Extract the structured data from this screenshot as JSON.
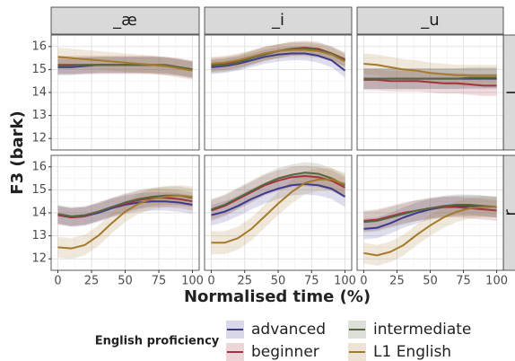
{
  "chart_data": {
    "type": "line",
    "x_label": "Normalised time (%)",
    "y_label": "F3 (bark)",
    "legend_title": "English proficiency",
    "xlim": [
      -5,
      105
    ],
    "ylim": [
      11.5,
      16.5
    ],
    "xticks": [
      0,
      25,
      50,
      75,
      100
    ],
    "yticks": [
      12,
      13,
      14,
      15,
      16
    ],
    "grid": true,
    "x": [
      0,
      10,
      20,
      30,
      40,
      50,
      60,
      70,
      80,
      90,
      100
    ],
    "series": [
      {
        "name": "advanced",
        "color": "#3e3a8e"
      },
      {
        "name": "beginner",
        "color": "#a5323c"
      },
      {
        "name": "intermediate",
        "color": "#56663f"
      },
      {
        "name": "L1 English",
        "color": "#a47a2c"
      }
    ],
    "columns": [
      "_æ",
      "_i",
      "_u"
    ],
    "rows": [
      {
        "label": "l",
        "panels": [
          {
            "series": [
              {
                "values": [
                  15.1,
                  15.1,
                  15.15,
                  15.2,
                  15.2,
                  15.2,
                  15.2,
                  15.2,
                  15.15,
                  15.1,
                  15.0
                ],
                "spread": 0.35
              },
              {
                "values": [
                  15.2,
                  15.2,
                  15.2,
                  15.2,
                  15.2,
                  15.2,
                  15.2,
                  15.2,
                  15.15,
                  15.1,
                  15.0
                ],
                "spread": 0.4
              },
              {
                "values": [
                  15.15,
                  15.15,
                  15.2,
                  15.2,
                  15.2,
                  15.2,
                  15.2,
                  15.2,
                  15.2,
                  15.1,
                  15.0
                ],
                "spread": 0.35
              },
              {
                "values": [
                  15.55,
                  15.5,
                  15.45,
                  15.4,
                  15.35,
                  15.3,
                  15.25,
                  15.2,
                  15.15,
                  15.05,
                  14.95
                ],
                "spread": 0.4
              }
            ]
          },
          {
            "series": [
              {
                "values": [
                  15.1,
                  15.15,
                  15.25,
                  15.4,
                  15.55,
                  15.65,
                  15.7,
                  15.7,
                  15.6,
                  15.4,
                  14.95
                ],
                "spread": 0.3
              },
              {
                "values": [
                  15.2,
                  15.25,
                  15.35,
                  15.5,
                  15.7,
                  15.8,
                  15.9,
                  15.95,
                  15.9,
                  15.7,
                  15.45
                ],
                "spread": 0.3
              },
              {
                "values": [
                  15.15,
                  15.2,
                  15.3,
                  15.5,
                  15.65,
                  15.8,
                  15.9,
                  15.9,
                  15.85,
                  15.7,
                  15.4
                ],
                "spread": 0.3
              },
              {
                "values": [
                  15.25,
                  15.3,
                  15.4,
                  15.55,
                  15.7,
                  15.8,
                  15.85,
                  15.85,
                  15.8,
                  15.65,
                  15.35
                ],
                "spread": 0.3
              }
            ]
          },
          {
            "series": [
              {
                "values": [
                  14.6,
                  14.6,
                  14.6,
                  14.6,
                  14.6,
                  14.6,
                  14.6,
                  14.6,
                  14.6,
                  14.6,
                  14.6
                ],
                "spread": 0.45
              },
              {
                "values": [
                  14.55,
                  14.55,
                  14.5,
                  14.5,
                  14.5,
                  14.45,
                  14.4,
                  14.4,
                  14.35,
                  14.3,
                  14.3
                ],
                "spread": 0.45
              },
              {
                "values": [
                  14.6,
                  14.6,
                  14.6,
                  14.6,
                  14.6,
                  14.6,
                  14.6,
                  14.6,
                  14.65,
                  14.65,
                  14.65
                ],
                "spread": 0.45
              },
              {
                "values": [
                  15.25,
                  15.2,
                  15.1,
                  15.0,
                  14.95,
                  14.85,
                  14.8,
                  14.75,
                  14.75,
                  14.75,
                  14.75
                ],
                "spread": 0.45
              }
            ]
          }
        ]
      },
      {
        "label": "ɹ",
        "panels": [
          {
            "series": [
              {
                "values": [
                  13.9,
                  13.8,
                  13.85,
                  14.0,
                  14.2,
                  14.35,
                  14.45,
                  14.5,
                  14.5,
                  14.45,
                  14.35
                ],
                "spread": 0.4
              },
              {
                "values": [
                  13.9,
                  13.8,
                  13.85,
                  14.05,
                  14.25,
                  14.4,
                  14.55,
                  14.65,
                  14.65,
                  14.6,
                  14.5
                ],
                "spread": 0.4
              },
              {
                "values": [
                  13.95,
                  13.85,
                  13.9,
                  14.05,
                  14.25,
                  14.45,
                  14.6,
                  14.7,
                  14.75,
                  14.75,
                  14.65
                ],
                "spread": 0.4
              },
              {
                "values": [
                  12.5,
                  12.45,
                  12.6,
                  13.0,
                  13.55,
                  14.05,
                  14.4,
                  14.6,
                  14.7,
                  14.75,
                  14.7
                ],
                "spread": 0.45
              }
            ]
          },
          {
            "series": [
              {
                "values": [
                  13.9,
                  14.05,
                  14.3,
                  14.6,
                  14.85,
                  15.05,
                  15.2,
                  15.25,
                  15.2,
                  15.05,
                  14.7
                ],
                "spread": 0.45
              },
              {
                "values": [
                  14.1,
                  14.3,
                  14.6,
                  14.9,
                  15.2,
                  15.4,
                  15.55,
                  15.6,
                  15.55,
                  15.4,
                  15.1
                ],
                "spread": 0.45
              },
              {
                "values": [
                  14.15,
                  14.35,
                  14.65,
                  14.95,
                  15.25,
                  15.5,
                  15.65,
                  15.75,
                  15.7,
                  15.5,
                  15.2
                ],
                "spread": 0.45
              },
              {
                "values": [
                  12.7,
                  12.7,
                  12.9,
                  13.3,
                  13.85,
                  14.4,
                  14.9,
                  15.3,
                  15.45,
                  15.45,
                  15.25
                ],
                "spread": 0.5
              }
            ]
          },
          {
            "series": [
              {
                "values": [
                  13.3,
                  13.35,
                  13.55,
                  13.8,
                  14.0,
                  14.15,
                  14.25,
                  14.3,
                  14.3,
                  14.3,
                  14.25
                ],
                "spread": 0.45
              },
              {
                "values": [
                  13.65,
                  13.7,
                  13.85,
                  14.0,
                  14.1,
                  14.2,
                  14.25,
                  14.25,
                  14.2,
                  14.15,
                  14.1
                ],
                "spread": 0.45
              },
              {
                "values": [
                  13.6,
                  13.65,
                  13.8,
                  13.95,
                  14.1,
                  14.2,
                  14.3,
                  14.35,
                  14.35,
                  14.3,
                  14.25
                ],
                "spread": 0.45
              },
              {
                "values": [
                  12.25,
                  12.15,
                  12.3,
                  12.6,
                  13.05,
                  13.45,
                  13.8,
                  14.05,
                  14.2,
                  14.25,
                  14.25
                ],
                "spread": 0.45
              }
            ]
          }
        ]
      }
    ]
  }
}
